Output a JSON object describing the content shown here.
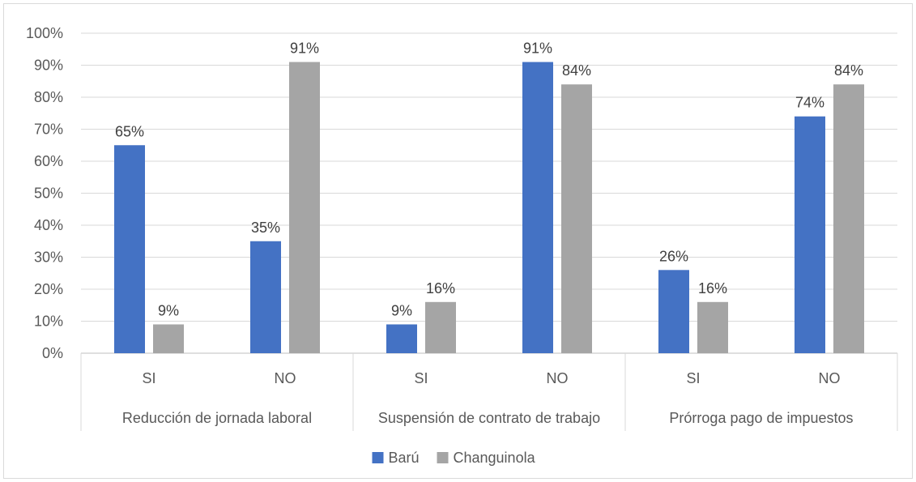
{
  "chart_data": {
    "type": "bar",
    "title": "",
    "xlabel": "",
    "ylabel": "",
    "ylim": [
      0,
      1
    ],
    "y_ticks": [
      "0%",
      "10%",
      "20%",
      "30%",
      "40%",
      "50%",
      "60%",
      "70%",
      "80%",
      "90%",
      "100%"
    ],
    "groups": [
      "Reducción de jornada laboral",
      "Suspensión de contrato de trabajo",
      "Prórroga pago de impuestos"
    ],
    "categories": [
      "SI",
      "NO",
      "SI",
      "NO",
      "SI",
      "NO"
    ],
    "series": [
      {
        "name": "Barú",
        "color": "#4472c4",
        "values": [
          0.65,
          0.35,
          0.09,
          0.91,
          0.26,
          0.74
        ],
        "labels": [
          "65%",
          "35%",
          "9%",
          "91%",
          "26%",
          "74%"
        ]
      },
      {
        "name": "Changuinola",
        "color": "#a5a5a5",
        "values": [
          0.09,
          0.91,
          0.16,
          0.84,
          0.16,
          0.84
        ],
        "labels": [
          "9%",
          "91%",
          "16%",
          "84%",
          "16%",
          "84%"
        ]
      }
    ],
    "grid": true,
    "legend_position": "bottom"
  }
}
